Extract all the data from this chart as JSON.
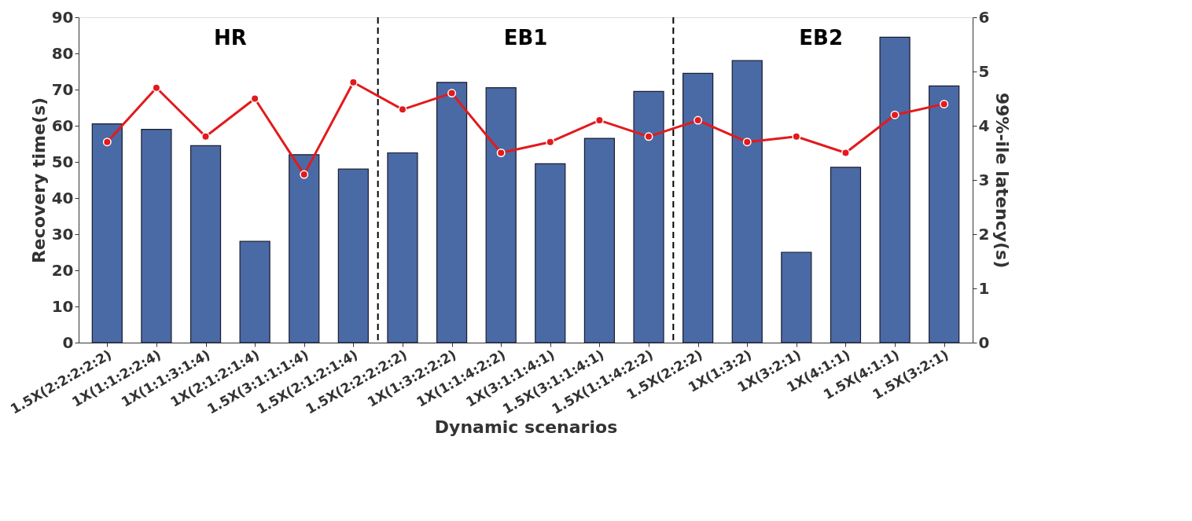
{
  "chart_data": {
    "type": "bar",
    "xlabel": "Dynamic scenarios",
    "ylabel": "Recovery time(s)",
    "y2label": "99%-ile latency(s)",
    "categories": [
      "1.5X(2:2:2:2:2)",
      "1X(1:1:2:2:4)",
      "1X(1:1:3:1:4)",
      "1X(2:1:2:1:4)",
      "1.5X(3:1:1:1:4)",
      "1.5X(2:1:2:1:4)",
      "1.5X(2:2:2:2:2)",
      "1X(1:3:2:2:2)",
      "1X(1:1:4:2:2)",
      "1X(3:1:1:4:1)",
      "1.5X(3:1:1:4:1)",
      "1.5X(1:1:4:2:2)",
      "1.5X(2:2:2)",
      "1X(1:3:2)",
      "1X(3:2:1)",
      "1X(4:1:1)",
      "1.5X(4:1:1)",
      "1.5X(3:2:1)"
    ],
    "series": [
      {
        "color": "#4a6aa5",
        "values": [
          60.5,
          59,
          54.5,
          28,
          52,
          48,
          52.5,
          72,
          70.5,
          49.5,
          56.5,
          69.5,
          74.5,
          78,
          25,
          48.5,
          84.5,
          71
        ]
      },
      {
        "type": "line",
        "axis": "y2",
        "color": "#e31a1c",
        "marker": "circle",
        "values": [
          3.7,
          4.7,
          3.8,
          4.5,
          3.1,
          4.8,
          4.3,
          4.6,
          3.5,
          3.7,
          4.1,
          3.8,
          4.1,
          3.7,
          3.8,
          3.5,
          4.2,
          4.4
        ]
      }
    ],
    "ylim": [
      0,
      90
    ],
    "yticks": [
      0,
      10,
      20,
      30,
      40,
      50,
      60,
      70,
      80,
      90
    ],
    "y2lim": [
      0,
      6
    ],
    "y2ticks": [
      0,
      1,
      2,
      3,
      4,
      5,
      6
    ],
    "annotations": [
      "HR",
      "EB1",
      "EB2"
    ],
    "grid": false
  }
}
